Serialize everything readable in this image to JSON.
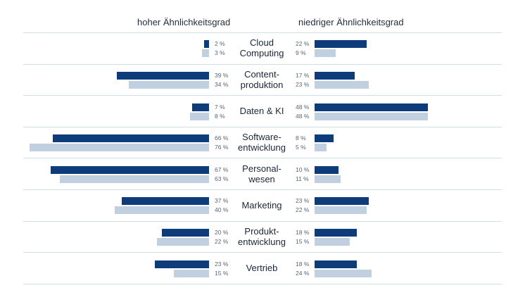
{
  "chart_data": {
    "type": "bar",
    "left_title": "hoher Ähnlichkeitsgrad",
    "right_title": "niedriger Ähnlichkeitsgrad",
    "categories": [
      "Cloud\nComputing",
      "Content-\nproduktion",
      "Daten & KI",
      "Software-\nentwicklung",
      "Personal-\nwesen",
      "Marketing",
      "Produkt-\nentwicklung",
      "Vertrieb"
    ],
    "left": {
      "series": [
        {
          "color": "#0e3b7a",
          "values": [
            2,
            39,
            7,
            66,
            67,
            37,
            20,
            23
          ]
        },
        {
          "color": "#c0d0e0",
          "values": [
            3,
            34,
            8,
            76,
            63,
            40,
            22,
            15
          ]
        }
      ]
    },
    "right": {
      "series": [
        {
          "color": "#0e3b7a",
          "values": [
            22,
            17,
            48,
            8,
            10,
            23,
            18,
            18
          ]
        },
        {
          "color": "#c0d0e0",
          "values": [
            9,
            23,
            48,
            5,
            11,
            22,
            15,
            24
          ]
        }
      ]
    },
    "labels": {
      "left": [
        [
          "2 %",
          "3 %"
        ],
        [
          "39 %",
          "34 %"
        ],
        [
          "7 %",
          "8 %"
        ],
        [
          "66 %",
          "76 %"
        ],
        [
          "67 %",
          "63 %"
        ],
        [
          "37 %",
          "40 %"
        ],
        [
          "20 %",
          "22 %"
        ],
        [
          "23 %",
          "15 %"
        ]
      ],
      "right": [
        [
          "22 %",
          "9 %"
        ],
        [
          "17 %",
          "23 %"
        ],
        [
          "48 %",
          "48 %"
        ],
        [
          "8 %",
          "5 %"
        ],
        [
          "10 %",
          "11 %"
        ],
        [
          "23 %",
          "22 %"
        ],
        [
          "18 %",
          "15 %"
        ],
        [
          "18 %",
          "24 %"
        ]
      ]
    },
    "percent_unit": "%",
    "grid": false,
    "legend": "none"
  }
}
